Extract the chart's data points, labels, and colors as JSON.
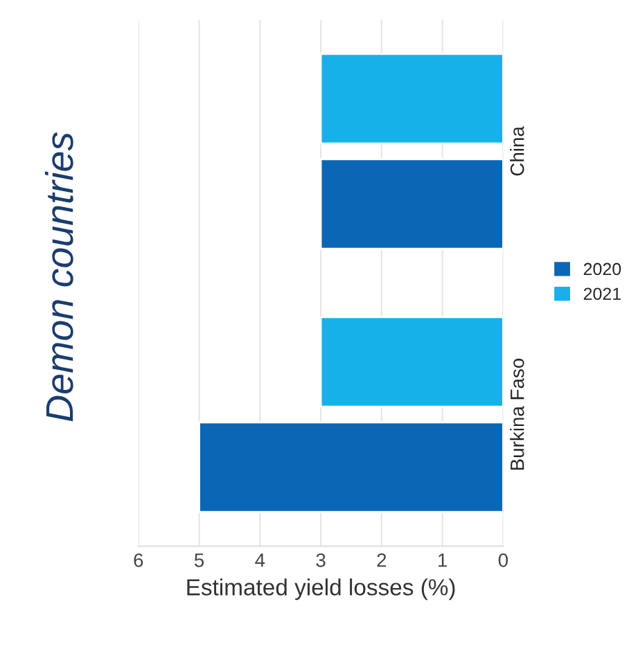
{
  "chart_data": {
    "type": "bar",
    "orientation": "horizontal",
    "title": "Demon countries",
    "xlabel": "Estimated yield losses (%)",
    "categories": [
      "China",
      "Burkina Faso"
    ],
    "series": [
      {
        "name": "2020",
        "color": "#0b67b5",
        "values": [
          3,
          5
        ]
      },
      {
        "name": "2021",
        "color": "#17b1ea",
        "values": [
          3,
          3
        ]
      }
    ],
    "xlim": [
      6,
      0
    ],
    "xticks": [
      6,
      5,
      4,
      3,
      2,
      1,
      0
    ],
    "grid": "x",
    "legend": "right"
  }
}
